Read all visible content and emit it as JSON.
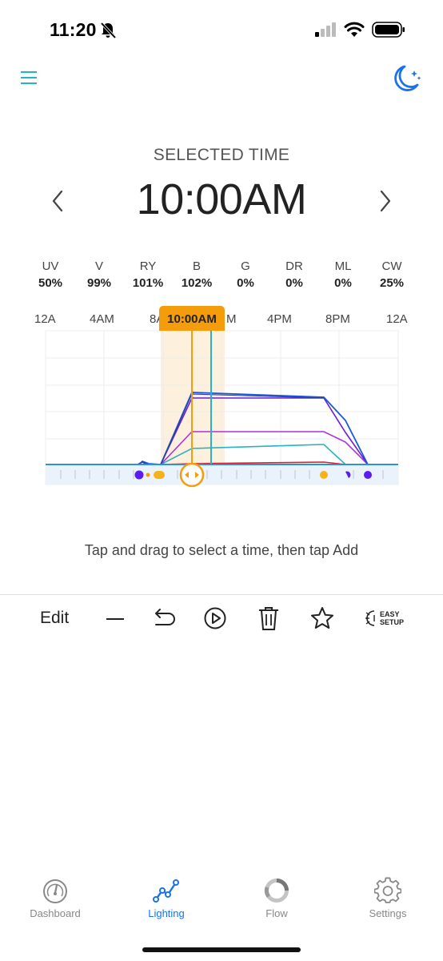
{
  "status_bar": {
    "time": "11:20"
  },
  "header": {
    "caption": "SELECTED TIME",
    "time": "10:00AM"
  },
  "channels": [
    {
      "name": "UV",
      "value": "50%"
    },
    {
      "name": "V",
      "value": "99%"
    },
    {
      "name": "RY",
      "value": "101%"
    },
    {
      "name": "B",
      "value": "102%"
    },
    {
      "name": "G",
      "value": "0%"
    },
    {
      "name": "DR",
      "value": "0%"
    },
    {
      "name": "ML",
      "value": "0%"
    },
    {
      "name": "CW",
      "value": "25%"
    }
  ],
  "axis": {
    "labels": [
      "12A",
      "4AM",
      "8A",
      "M",
      "4PM",
      "8PM",
      "12A"
    ]
  },
  "selected_flag": "10:00AM",
  "hint": "Tap and drag to select a time, then tap Add",
  "toolbar": {
    "edit_label": "Edit",
    "easy_setup_line1": "EASY",
    "easy_setup_line2": "SETUP"
  },
  "tabs": [
    {
      "label": "Dashboard",
      "icon": "gauge-icon",
      "active": false
    },
    {
      "label": "Lighting",
      "icon": "line-chart-icon",
      "active": true
    },
    {
      "label": "Flow",
      "icon": "ring-icon",
      "active": false
    },
    {
      "label": "Settings",
      "icon": "gear-icon",
      "active": false
    }
  ],
  "colors": {
    "accent": "#1a73e8",
    "teal": "#26b3c4",
    "orange": "#f59c0d",
    "purple": "#5b1cf0"
  }
}
